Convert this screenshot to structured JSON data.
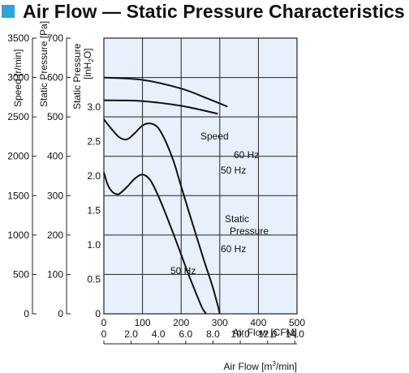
{
  "title": "Air Flow — Static Pressure Characteristics",
  "colors": {
    "accent": "#2fa3dc",
    "plot_background": "#e8f0fb",
    "grid": "#222222",
    "curves": "#111111"
  },
  "chart_data": {
    "type": "line",
    "title": "Air Flow — Static Pressure Characteristics",
    "grid": true,
    "x_axes": [
      {
        "label": "Air Flow [CFM]",
        "range": [
          0,
          500
        ],
        "ticks": [
          "0",
          "100",
          "200",
          "300",
          "400",
          "500"
        ]
      },
      {
        "label_main": "Air Flow [m",
        "label_sup": "3",
        "label_end": "/min]",
        "range": [
          0,
          14.16
        ],
        "ticks": [
          "0",
          "2.0",
          "4.0",
          "6.0",
          "8.0",
          "10.0",
          "12.0",
          "14.0"
        ],
        "tick_values": [
          0,
          2,
          4,
          6,
          8,
          10,
          12,
          14
        ]
      }
    ],
    "y_axes": [
      {
        "label": "Speed [r/min]",
        "range": [
          0,
          3500
        ],
        "ticks": [
          "0",
          "500",
          "1000",
          "1500",
          "2000",
          "2500",
          "3000",
          "3500"
        ]
      },
      {
        "label": "Static Pressure [Pa]",
        "range": [
          0,
          700
        ],
        "ticks": [
          "0",
          "100",
          "200",
          "300",
          "400",
          "500",
          "600",
          "700"
        ]
      },
      {
        "label_line1": "Static Pressure",
        "label_line2_main": "[inH",
        "label_line2_sub": "2",
        "label_line2_end": "O]",
        "range": [
          0,
          3.0
        ],
        "ticks": [
          "0",
          "0.5",
          "1.0",
          "1.5",
          "2.0",
          "2.5",
          "3.0"
        ]
      }
    ],
    "annotations": {
      "speed": "Speed",
      "static_pressure_line1": "Static",
      "static_pressure_line2": "Pressure",
      "speed_60": "60 Hz",
      "speed_50": "50 Hz",
      "pressure_60": "60 Hz",
      "pressure_50": "50 Hz"
    },
    "series": [
      {
        "name": "Speed 60 Hz",
        "axis": "Speed [r/min]",
        "x_cfm": [
          0,
          100,
          200,
          270,
          320
        ],
        "y": [
          3000,
          2970,
          2860,
          2730,
          2630
        ]
      },
      {
        "name": "Speed 50 Hz",
        "axis": "Speed [r/min]",
        "x_cfm": [
          0,
          100,
          200,
          295
        ],
        "y": [
          2710,
          2700,
          2640,
          2540
        ]
      },
      {
        "name": "Static Pressure 60 Hz",
        "axis": "Static Pressure [inH2O]",
        "x_cfm": [
          0,
          20,
          40,
          60,
          80,
          100,
          120,
          140,
          160,
          180,
          200,
          220,
          240,
          260,
          280,
          295,
          300
        ],
        "y": [
          2.82,
          2.68,
          2.56,
          2.53,
          2.62,
          2.73,
          2.76,
          2.7,
          2.5,
          2.22,
          1.85,
          1.48,
          1.12,
          0.76,
          0.42,
          0.12,
          0
        ]
      },
      {
        "name": "Static Pressure 50 Hz",
        "axis": "Static Pressure [inH2O]",
        "x_cfm": [
          0,
          10,
          20,
          30,
          40,
          60,
          80,
          100,
          120,
          140,
          160,
          180,
          200,
          220,
          240,
          255,
          265
        ],
        "y": [
          2.05,
          1.87,
          1.78,
          1.74,
          1.74,
          1.84,
          1.96,
          2.02,
          1.94,
          1.72,
          1.45,
          1.16,
          0.86,
          0.56,
          0.28,
          0.08,
          0
        ]
      }
    ]
  }
}
